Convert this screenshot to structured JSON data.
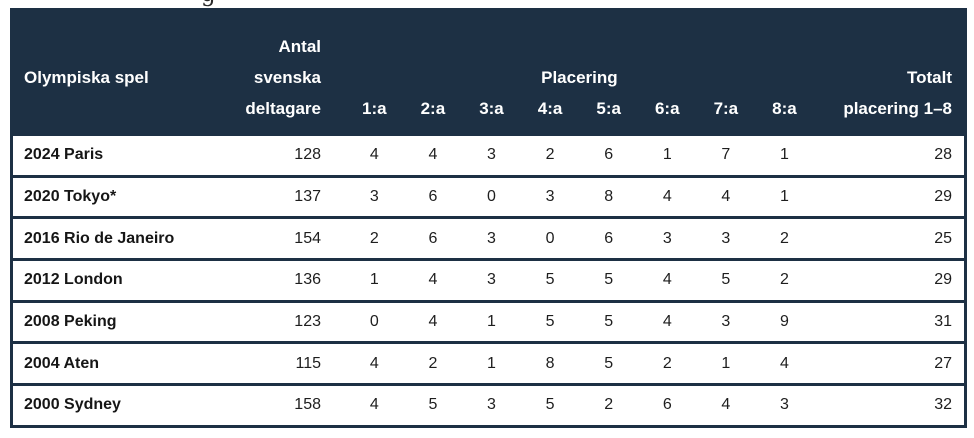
{
  "page": {
    "clipped_heading_fragment": "g"
  },
  "colors": {
    "header_background": "#1d3044",
    "border": "#1d3044",
    "header_text": "#ffffff",
    "body_text": "#1e1e1e"
  },
  "table": {
    "header": {
      "games_label": "Olympiska spel",
      "participants_lines": [
        "Antal",
        "svenska",
        "deltagare"
      ],
      "placering_label": "Placering",
      "place_columns": [
        "1:a",
        "2:a",
        "3:a",
        "4:a",
        "5:a",
        "6:a",
        "7:a",
        "8:a"
      ],
      "total_lines": [
        "Totalt",
        "placering 1–8"
      ]
    }
  },
  "chart_data": {
    "type": "table",
    "title": "",
    "columns": [
      "Olympiska spel",
      "Antal svenska deltagare",
      "1:a",
      "2:a",
      "3:a",
      "4:a",
      "5:a",
      "6:a",
      "7:a",
      "8:a",
      "Totalt placering 1–8"
    ],
    "rows": [
      {
        "games": "2024 Paris",
        "participants": 128,
        "places": [
          4,
          4,
          3,
          2,
          6,
          1,
          7,
          1
        ],
        "total": 28
      },
      {
        "games": "2020 Tokyo*",
        "participants": 137,
        "places": [
          3,
          6,
          0,
          3,
          8,
          4,
          4,
          1
        ],
        "total": 29
      },
      {
        "games": "2016 Rio de Janeiro",
        "participants": 154,
        "places": [
          2,
          6,
          3,
          0,
          6,
          3,
          3,
          2
        ],
        "total": 25
      },
      {
        "games": "2012 London",
        "participants": 136,
        "places": [
          1,
          4,
          3,
          5,
          5,
          4,
          5,
          2
        ],
        "total": 29
      },
      {
        "games": "2008 Peking",
        "participants": 123,
        "places": [
          0,
          4,
          1,
          5,
          5,
          4,
          3,
          9
        ],
        "total": 31
      },
      {
        "games": "2004 Aten",
        "participants": 115,
        "places": [
          4,
          2,
          1,
          8,
          5,
          2,
          1,
          4
        ],
        "total": 27
      },
      {
        "games": "2000 Sydney",
        "participants": 158,
        "places": [
          4,
          5,
          3,
          5,
          2,
          6,
          4,
          3
        ],
        "total": 32
      }
    ]
  }
}
